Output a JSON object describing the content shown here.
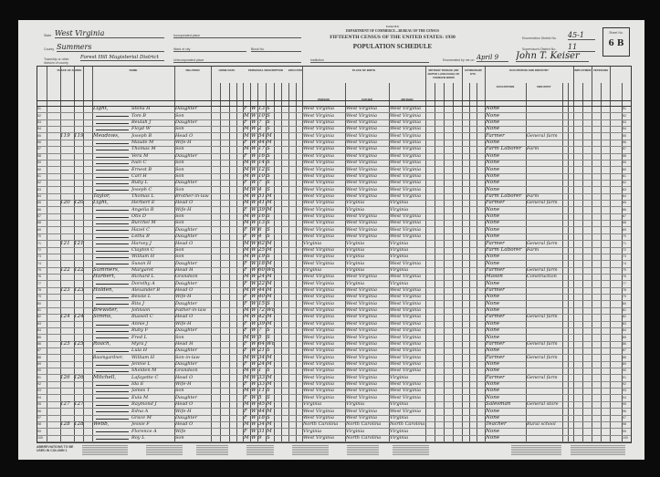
{
  "form": {
    "form_no": "Form 15-6",
    "department": "DEPARTMENT OF COMMERCE—BUREAU OF THE CENSUS",
    "title": "FIFTEENTH CENSUS OF THE UNITED STATES: 1930",
    "subtitle": "POPULATION SCHEDULE",
    "state_label": "State",
    "state": "West Virginia",
    "county_label": "County",
    "county": "Summers",
    "township_label": "Township or other division of county",
    "township": "Forest Hill Magisterial District",
    "incorporated_label": "Incorporated place",
    "ward_label": "Ward of city",
    "block_label": "Block No.",
    "unincorporated_label": "Unincorporated place",
    "institution_label": "Institution",
    "enumerated_label": "Enumerated by me on",
    "enumerated_date": "April 9",
    "enumerator": "John T. Keiser",
    "ed_label": "Enumeration District No.",
    "ed": "45-1",
    "sd_label": "Supervisor's District No.",
    "sd": "11",
    "sheet_label": "Sheet No.",
    "sheet": "6 B"
  },
  "column_headers": {
    "place_of_abode": "PLACE OF ABODE",
    "name": "NAME",
    "relation": "RELATION",
    "home_data": "HOME DATA",
    "personal": "PERSONAL DESCRIPTION",
    "education": "EDUCATION",
    "birth": "PLACE OF BIRTH",
    "person": "PERSON",
    "father": "FATHER",
    "mother": "MOTHER",
    "tongue": "MOTHER TONGUE (OR NATIVE LANGUAGE) OF FOREIGN BORN",
    "citizenship": "CITIZENSHIP, ETC.",
    "occupation_group": "OCCUPATION AND INDUSTRY",
    "occupation": "OCCUPATION",
    "industry": "INDUSTRY",
    "employment": "EMPLOYMENT",
    "veterans": "VETERANS"
  },
  "rows": [
    {
      "line": "51",
      "dw": "",
      "fam": "",
      "surname": "Light,",
      "given": "Stella H",
      "rel": "Daughter",
      "sex": "F",
      "race": "W",
      "age": "13",
      "ms": "S",
      "bp": "West Virginia",
      "fbp": "West Virginia",
      "mbp": "West Virginia",
      "occ": "None",
      "ind": ""
    },
    {
      "line": "52",
      "dw": "",
      "fam": "",
      "surname": "",
      "given": "Tom B",
      "rel": "Son",
      "sex": "M",
      "race": "W",
      "age": "10",
      "ms": "S",
      "bp": "West Virginia",
      "fbp": "West Virginia",
      "mbp": "West Virginia",
      "occ": "None",
      "ind": ""
    },
    {
      "line": "53",
      "dw": "",
      "fam": "",
      "surname": "",
      "given": "Beulah J",
      "rel": "Daughter",
      "sex": "F",
      "race": "W",
      "age": "7",
      "ms": "S",
      "bp": "West Virginia",
      "fbp": "West Virginia",
      "mbp": "West Virginia",
      "occ": "None",
      "ind": ""
    },
    {
      "line": "54",
      "dw": "",
      "fam": "",
      "surname": "",
      "given": "Floyd W",
      "rel": "Son",
      "sex": "M",
      "race": "W",
      "age": "2",
      "ms": "S",
      "bp": "West Virginia",
      "fbp": "West Virginia",
      "mbp": "West Virginia",
      "occ": "None",
      "ind": ""
    },
    {
      "line": "55",
      "dw": "119",
      "fam": "119",
      "surname": "Meadows,",
      "given": "Joseph B",
      "rel": "Head O",
      "sex": "M",
      "race": "W",
      "age": "54",
      "ms": "M",
      "bp": "West Virginia",
      "fbp": "West Virginia",
      "mbp": "West Virginia",
      "occ": "Farmer",
      "ind": "General farm"
    },
    {
      "line": "56",
      "dw": "",
      "fam": "",
      "surname": "",
      "given": "Maude M",
      "rel": "Wife-H",
      "sex": "F",
      "race": "W",
      "age": "44",
      "ms": "M",
      "bp": "West Virginia",
      "fbp": "West Virginia",
      "mbp": "West Virginia",
      "occ": "None",
      "ind": ""
    },
    {
      "line": "57",
      "dw": "",
      "fam": "",
      "surname": "",
      "given": "Thomas M",
      "rel": "Son",
      "sex": "M",
      "race": "W",
      "age": "17",
      "ms": "S",
      "bp": "West Virginia",
      "fbp": "West Virginia",
      "mbp": "West Virginia",
      "occ": "Farm Laborer",
      "ind": "Farm"
    },
    {
      "line": "58",
      "dw": "",
      "fam": "",
      "surname": "",
      "given": "Vera M",
      "rel": "Daughter",
      "sex": "F",
      "race": "W",
      "age": "16",
      "ms": "S",
      "bp": "West Virginia",
      "fbp": "West Virginia",
      "mbp": "West Virginia",
      "occ": "None",
      "ind": ""
    },
    {
      "line": "59",
      "dw": "",
      "fam": "",
      "surname": "",
      "given": "Ivan C",
      "rel": "Son",
      "sex": "M",
      "race": "W",
      "age": "14",
      "ms": "S",
      "bp": "West Virginia",
      "fbp": "West Virginia",
      "mbp": "West Virginia",
      "occ": "None",
      "ind": ""
    },
    {
      "line": "60",
      "dw": "",
      "fam": "",
      "surname": "",
      "given": "Ernest B",
      "rel": "Son",
      "sex": "M",
      "race": "W",
      "age": "12",
      "ms": "S",
      "bp": "West Virginia",
      "fbp": "West Virginia",
      "mbp": "West Virginia",
      "occ": "None",
      "ind": ""
    },
    {
      "line": "61",
      "dw": "",
      "fam": "",
      "surname": "",
      "given": "Carl H",
      "rel": "Son",
      "sex": "M",
      "race": "W",
      "age": "10",
      "ms": "S",
      "bp": "West Virginia",
      "fbp": "West Virginia",
      "mbp": "West Virginia",
      "occ": "None",
      "ind": ""
    },
    {
      "line": "62",
      "dw": "",
      "fam": "",
      "surname": "",
      "given": "Ruby L",
      "rel": "Daughter",
      "sex": "F",
      "race": "W",
      "age": "7",
      "ms": "S",
      "bp": "West Virginia",
      "fbp": "West Virginia",
      "mbp": "West Virginia",
      "occ": "None",
      "ind": ""
    },
    {
      "line": "63",
      "dw": "",
      "fam": "",
      "surname": "",
      "given": "Joseph C",
      "rel": "Son",
      "sex": "M",
      "race": "W",
      "age": "4",
      "ms": "S",
      "bp": "West Virginia",
      "fbp": "West Virginia",
      "mbp": "West Virginia",
      "occ": "None",
      "ind": ""
    },
    {
      "line": "64",
      "dw": "",
      "fam": "",
      "surname": "Taylor,",
      "given": "Thomas L",
      "rel": "Brother-in-law",
      "sex": "M",
      "race": "W",
      "age": "51",
      "ms": "M",
      "bp": "West Virginia",
      "fbp": "West Virginia",
      "mbp": "West Virginia",
      "occ": "Farm Laborer",
      "ind": "Farm"
    },
    {
      "line": "65",
      "dw": "120",
      "fam": "120",
      "surname": "Light,",
      "given": "Herbert E",
      "rel": "Head O",
      "sex": "M",
      "race": "W",
      "age": "41",
      "ms": "M",
      "bp": "West Virginia",
      "fbp": "Virginia",
      "mbp": "Virginia",
      "occ": "Farmer",
      "ind": "General farm"
    },
    {
      "line": "66",
      "dw": "",
      "fam": "",
      "surname": "",
      "given": "Angelia R",
      "rel": "Wife-H",
      "sex": "F",
      "race": "W",
      "age": "39",
      "ms": "M",
      "bp": "West Virginia",
      "fbp": "Virginia",
      "mbp": "Virginia",
      "occ": "None",
      "ind": ""
    },
    {
      "line": "67",
      "dw": "",
      "fam": "",
      "surname": "",
      "given": "Otis D",
      "rel": "Son",
      "sex": "M",
      "race": "W",
      "age": "16",
      "ms": "S",
      "bp": "West Virginia",
      "fbp": "West Virginia",
      "mbp": "West Virginia",
      "occ": "None",
      "ind": ""
    },
    {
      "line": "68",
      "dw": "",
      "fam": "",
      "surname": "",
      "given": "Burchel M",
      "rel": "Son",
      "sex": "M",
      "race": "W",
      "age": "13",
      "ms": "S",
      "bp": "West Virginia",
      "fbp": "West Virginia",
      "mbp": "West Virginia",
      "occ": "None",
      "ind": ""
    },
    {
      "line": "69",
      "dw": "",
      "fam": "",
      "surname": "",
      "given": "Hazel C",
      "rel": "Daughter",
      "sex": "F",
      "race": "W",
      "age": "6",
      "ms": "S",
      "bp": "West Virginia",
      "fbp": "West Virginia",
      "mbp": "West Virginia",
      "occ": "None",
      "ind": ""
    },
    {
      "line": "70",
      "dw": "",
      "fam": "",
      "surname": "",
      "given": "Letha B",
      "rel": "Daughter",
      "sex": "F",
      "race": "W",
      "age": "4",
      "ms": "S",
      "bp": "West Virginia",
      "fbp": "West Virginia",
      "mbp": "West Virginia",
      "occ": "None",
      "ind": ""
    },
    {
      "line": "71",
      "dw": "121",
      "fam": "121",
      "surname": "",
      "given": "Harvey J",
      "rel": "Head O",
      "sex": "M",
      "race": "W",
      "age": "62",
      "ms": "M",
      "bp": "Virginia",
      "fbp": "Virginia",
      "mbp": "Virginia",
      "occ": "Farmer",
      "ind": "General farm"
    },
    {
      "line": "72",
      "dw": "",
      "fam": "",
      "surname": "",
      "given": "Clayton C",
      "rel": "Son",
      "sex": "M",
      "race": "W",
      "age": "25",
      "ms": "M",
      "bp": "West Virginia",
      "fbp": "Virginia",
      "mbp": "Virginia",
      "occ": "Farm Laborer",
      "ind": "Farm"
    },
    {
      "line": "73",
      "dw": "",
      "fam": "",
      "surname": "",
      "given": "William H",
      "rel": "Son",
      "sex": "M",
      "race": "W",
      "age": "19",
      "ms": "S",
      "bp": "West Virginia",
      "fbp": "Virginia",
      "mbp": "Virginia",
      "occ": "None",
      "ind": ""
    },
    {
      "line": "74",
      "dw": "",
      "fam": "",
      "surname": "",
      "given": "Susan H",
      "rel": "Daughter",
      "sex": "F",
      "race": "W",
      "age": "18",
      "ms": "M",
      "bp": "West Virginia",
      "fbp": "Virginia",
      "mbp": "West Virginia",
      "occ": "None",
      "ind": ""
    },
    {
      "line": "75",
      "dw": "122",
      "fam": "122",
      "surname": "Summers,",
      "given": "Margaret",
      "rel": "Head H",
      "sex": "F",
      "race": "W",
      "age": "60",
      "ms": "Wd",
      "bp": "Virginia",
      "fbp": "Virginia",
      "mbp": "Virginia",
      "occ": "Farmer",
      "ind": "General farm"
    },
    {
      "line": "76",
      "dw": "",
      "fam": "",
      "surname": "Harbert,",
      "given": "Richard L",
      "rel": "Grandson",
      "sex": "M",
      "race": "W",
      "age": "24",
      "ms": "M",
      "bp": "West Virginia",
      "fbp": "West Virginia",
      "mbp": "West Virginia",
      "occ": "Mason",
      "ind": "Construction"
    },
    {
      "line": "77",
      "dw": "",
      "fam": "",
      "surname": "",
      "given": "Dorothy A",
      "rel": "Daughter",
      "sex": "F",
      "race": "W",
      "age": "22",
      "ms": "M",
      "bp": "West Virginia",
      "fbp": "Virginia",
      "mbp": "Virginia",
      "occ": "None",
      "ind": ""
    },
    {
      "line": "78",
      "dw": "123",
      "fam": "123",
      "surname": "Holden,",
      "given": "Alexander B",
      "rel": "Head O",
      "sex": "M",
      "race": "W",
      "age": "44",
      "ms": "M",
      "bp": "West Virginia",
      "fbp": "West Virginia",
      "mbp": "West Virginia",
      "occ": "Farmer",
      "ind": ""
    },
    {
      "line": "79",
      "dw": "",
      "fam": "",
      "surname": "",
      "given": "Bessie L",
      "rel": "Wife-H",
      "sex": "F",
      "race": "W",
      "age": "40",
      "ms": "M",
      "bp": "West Virginia",
      "fbp": "West Virginia",
      "mbp": "West Virginia",
      "occ": "None",
      "ind": ""
    },
    {
      "line": "80",
      "dw": "",
      "fam": "",
      "surname": "",
      "given": "Rita J",
      "rel": "Daughter",
      "sex": "F",
      "race": "W",
      "age": "15",
      "ms": "S",
      "bp": "West Virginia",
      "fbp": "West Virginia",
      "mbp": "West Virginia",
      "occ": "None",
      "ind": ""
    },
    {
      "line": "81",
      "dw": "",
      "fam": "",
      "surname": "Brewster,",
      "given": "Johnson",
      "rel": "Father-in-law",
      "sex": "M",
      "race": "W",
      "age": "72",
      "ms": "Wd",
      "bp": "West Virginia",
      "fbp": "West Virginia",
      "mbp": "West Virginia",
      "occ": "None",
      "ind": ""
    },
    {
      "line": "82",
      "dw": "124",
      "fam": "124",
      "surname": "Simms,",
      "given": "Russell C",
      "rel": "Head O",
      "sex": "M",
      "race": "W",
      "age": "42",
      "ms": "M",
      "bp": "West Virginia",
      "fbp": "West Virginia",
      "mbp": "West Virginia",
      "occ": "Farmer",
      "ind": "General farm"
    },
    {
      "line": "83",
      "dw": "",
      "fam": "",
      "surname": "",
      "given": "Annie J",
      "rel": "Wife-H",
      "sex": "F",
      "race": "W",
      "age": "39",
      "ms": "M",
      "bp": "West Virginia",
      "fbp": "West Virginia",
      "mbp": "West Virginia",
      "occ": "None",
      "ind": ""
    },
    {
      "line": "84",
      "dw": "",
      "fam": "",
      "surname": "",
      "given": "Ruby F",
      "rel": "Daughter",
      "sex": "F",
      "race": "W",
      "age": "7",
      "ms": "S",
      "bp": "West Virginia",
      "fbp": "West Virginia",
      "mbp": "West Virginia",
      "occ": "None",
      "ind": ""
    },
    {
      "line": "85",
      "dw": "",
      "fam": "",
      "surname": "",
      "given": "Fred L",
      "rel": "Son",
      "sex": "M",
      "race": "W",
      "age": "5",
      "ms": "S",
      "bp": "West Virginia",
      "fbp": "West Virginia",
      "mbp": "West Virginia",
      "occ": "None",
      "ind": ""
    },
    {
      "line": "86",
      "dw": "125",
      "fam": "125",
      "surname": "Roach,",
      "given": "Myra J",
      "rel": "Head H",
      "sex": "F",
      "race": "W",
      "age": "64",
      "ms": "Wd",
      "bp": "West Virginia",
      "fbp": "West Virginia",
      "mbp": "West Virginia",
      "occ": "Farmer",
      "ind": "General farm"
    },
    {
      "line": "87",
      "dw": "",
      "fam": "",
      "surname": "",
      "given": "Lula H",
      "rel": "Daughter",
      "sex": "F",
      "race": "W",
      "age": "21",
      "ms": "S",
      "bp": "West Virginia",
      "fbp": "West Virginia",
      "mbp": "West Virginia",
      "occ": "None",
      "ind": ""
    },
    {
      "line": "88",
      "dw": "",
      "fam": "",
      "surname": "Baumgardner,",
      "given": "William H",
      "rel": "Son-in-law",
      "sex": "M",
      "race": "W",
      "age": "34",
      "ms": "M",
      "bp": "West Virginia",
      "fbp": "West Virginia",
      "mbp": "West Virginia",
      "occ": "Farmer",
      "ind": "General farm"
    },
    {
      "line": "89",
      "dw": "",
      "fam": "",
      "surname": "",
      "given": "Jennie L",
      "rel": "Daughter",
      "sex": "F",
      "race": "W",
      "age": "24",
      "ms": "M",
      "bp": "West Virginia",
      "fbp": "West Virginia",
      "mbp": "West Virginia",
      "occ": "None",
      "ind": ""
    },
    {
      "line": "90",
      "dw": "",
      "fam": "",
      "surname": "",
      "given": "Shelden M",
      "rel": "Grandson",
      "sex": "M",
      "race": "W",
      "age": "1",
      "ms": "S",
      "bp": "West Virginia",
      "fbp": "West Virginia",
      "mbp": "West Virginia",
      "occ": "None",
      "ind": ""
    },
    {
      "line": "91",
      "dw": "126",
      "fam": "126",
      "surname": "Mitchell,",
      "given": "Lafayette C",
      "rel": "Head O",
      "sex": "M",
      "race": "W",
      "age": "33",
      "ms": "M",
      "bp": "West Virginia",
      "fbp": "West Virginia",
      "mbp": "Virginia",
      "occ": "Farmer",
      "ind": "General farm"
    },
    {
      "line": "92",
      "dw": "",
      "fam": "",
      "surname": "",
      "given": "Ida E",
      "rel": "Wife-H",
      "sex": "F",
      "race": "W",
      "age": "33",
      "ms": "M",
      "bp": "West Virginia",
      "fbp": "West Virginia",
      "mbp": "West Virginia",
      "occ": "None",
      "ind": ""
    },
    {
      "line": "93",
      "dw": "",
      "fam": "",
      "surname": "",
      "given": "James T",
      "rel": "Son",
      "sex": "M",
      "race": "W",
      "age": "11",
      "ms": "S",
      "bp": "West Virginia",
      "fbp": "West Virginia",
      "mbp": "West Virginia",
      "occ": "None",
      "ind": ""
    },
    {
      "line": "94",
      "dw": "",
      "fam": "",
      "surname": "",
      "given": "Eula M",
      "rel": "Daughter",
      "sex": "F",
      "race": "W",
      "age": "5",
      "ms": "S",
      "bp": "West Virginia",
      "fbp": "West Virginia",
      "mbp": "West Virginia",
      "occ": "None",
      "ind": ""
    },
    {
      "line": "95",
      "dw": "127",
      "fam": "127",
      "surname": "",
      "given": "Raymond J",
      "rel": "Head O",
      "sex": "M",
      "race": "W",
      "age": "45",
      "ms": "M",
      "bp": "Virginia",
      "fbp": "Virginia",
      "mbp": "Virginia",
      "occ": "Salesman",
      "ind": "General store"
    },
    {
      "line": "96",
      "dw": "",
      "fam": "",
      "surname": "",
      "given": "Edna A",
      "rel": "Wife-H",
      "sex": "F",
      "race": "W",
      "age": "44",
      "ms": "M",
      "bp": "West Virginia",
      "fbp": "West Virginia",
      "mbp": "West Virginia",
      "occ": "None",
      "ind": ""
    },
    {
      "line": "97",
      "dw": "",
      "fam": "",
      "surname": "",
      "given": "Grace M",
      "rel": "Daughter",
      "sex": "F",
      "race": "W",
      "age": "18",
      "ms": "S",
      "bp": "West Virginia",
      "fbp": "West Virginia",
      "mbp": "Virginia",
      "occ": "None",
      "ind": ""
    },
    {
      "line": "98",
      "dw": "128",
      "fam": "128",
      "surname": "Webb,",
      "given": "Jessie F",
      "rel": "Head O",
      "sex": "M",
      "race": "W",
      "age": "34",
      "ms": "M",
      "bp": "North Carolina",
      "fbp": "North Carolina",
      "mbp": "North Carolina",
      "occ": "Teacher",
      "ind": "Rural school"
    },
    {
      "line": "99",
      "dw": "",
      "fam": "",
      "surname": "",
      "given": "Florence A",
      "rel": "Wife",
      "sex": "F",
      "race": "W",
      "age": "31",
      "ms": "M",
      "bp": "Virginia",
      "fbp": "Virginia",
      "mbp": "Virginia",
      "occ": "None",
      "ind": ""
    },
    {
      "line": "100",
      "dw": "",
      "fam": "",
      "surname": "",
      "given": "Roy L",
      "rel": "Son",
      "sex": "M",
      "race": "W",
      "age": "9",
      "ms": "S",
      "bp": "West Virginia",
      "fbp": "North Carolina",
      "mbp": "Virginia",
      "occ": "None",
      "ind": ""
    }
  ],
  "footer": {
    "abbreviations_title": "ABBREVIATIONS TO BE USED IN COLUMN 1"
  }
}
